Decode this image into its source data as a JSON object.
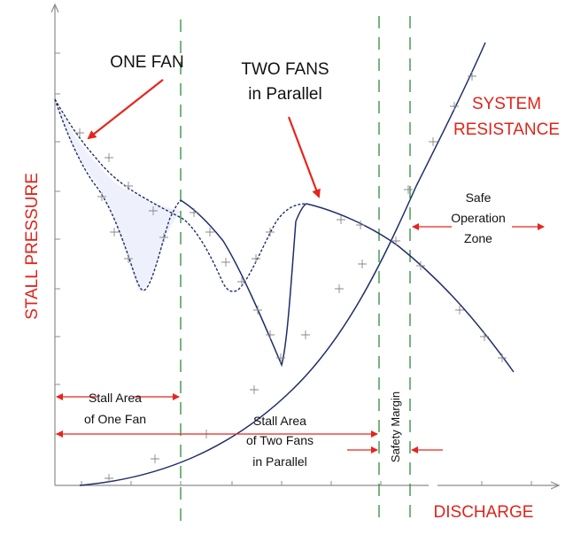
{
  "labels": {
    "one_fan": "ONE FAN",
    "two_fans_line1": "TWO FANS",
    "two_fans_line2": "in Parallel",
    "system_line1": "SYSTEM",
    "system_line2": "RESISTANCE",
    "safe_line1": "Safe",
    "safe_line2": "Operation",
    "safe_line3": "Zone",
    "stall_one_line1": "Stall Area",
    "stall_one_line2": "of One Fan",
    "stall_two_line1": "Stall Area",
    "stall_two_line2": "of Two Fans",
    "stall_two_line3": "in Parallel",
    "safety_margin": "Safety Margin",
    "y_axis": "STALL PRESSURE",
    "x_axis": "DISCHARGE"
  },
  "colors": {
    "curve": "#1f2d6b",
    "arrow_red": "#e8241c",
    "label_red": "#e0241b",
    "guide_green": "#2e8b3a",
    "axis_gray": "#8c8c8c",
    "shade": "#eef1fb"
  }
}
